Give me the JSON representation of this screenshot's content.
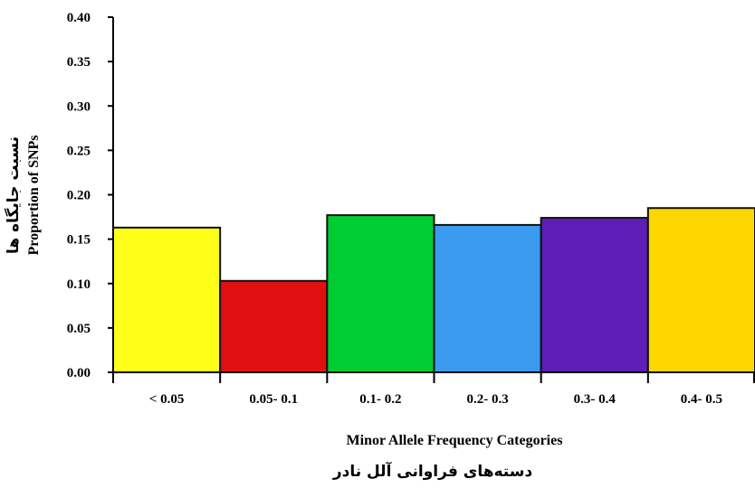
{
  "chart_data": {
    "type": "bar",
    "categories": [
      "< 0.05",
      "0.05- 0.1",
      "0.1- 0.2",
      "0.2- 0.3",
      "0.3- 0.4",
      "0.4- 0.5"
    ],
    "values": [
      0.163,
      0.103,
      0.177,
      0.166,
      0.174,
      0.185
    ],
    "colors": [
      "#ffff1a",
      "#e01010",
      "#00cc33",
      "#3a9bef",
      "#5e1db6",
      "#ffd700"
    ],
    "ylim": [
      0,
      0.4
    ],
    "yticks": [
      "0.00",
      "0.05",
      "0.10",
      "0.15",
      "0.20",
      "0.25",
      "0.30",
      "0.35",
      "0.40"
    ],
    "xlabel": "Minor Allele Frequency Categories",
    "xlabel_fa": "دسته‌های فراوانی آلل نادر",
    "ylabel": "Proportion of SNPs",
    "ylabel_fa": "نسبت جایگاه ها",
    "grid": false,
    "legend": "none"
  }
}
